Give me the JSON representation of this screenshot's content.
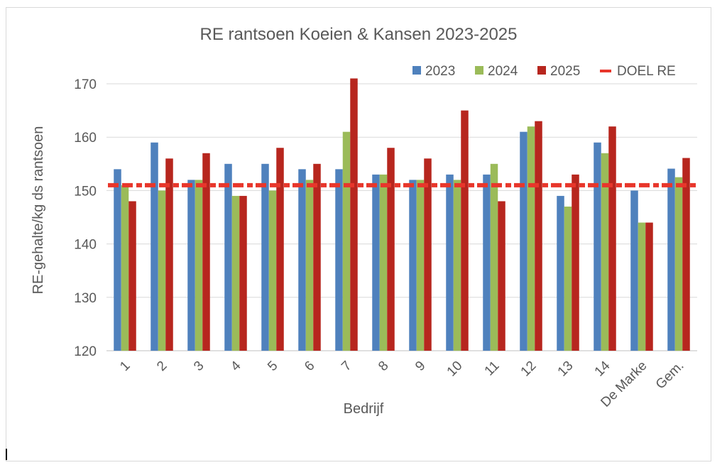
{
  "chart_data": {
    "type": "bar",
    "title": "RE rantsoen Koeien & Kansen 2023-2025",
    "xlabel": "Bedrijf",
    "ylabel": "RE-gehalte/kg ds rantsoen",
    "ylim": [
      120,
      170
    ],
    "yticks": [
      120,
      130,
      140,
      150,
      160,
      170
    ],
    "grid": true,
    "legend_position": "top-right",
    "categories": [
      "1",
      "2",
      "3",
      "4",
      "5",
      "6",
      "7",
      "8",
      "9",
      "10",
      "11",
      "12",
      "13",
      "14",
      "De Marke",
      "Gem."
    ],
    "series": [
      {
        "name": "2023",
        "color": "#4f81bd",
        "values": [
          154,
          159,
          152,
          155,
          155,
          154,
          154,
          153,
          152,
          153,
          153,
          161,
          149,
          159,
          150,
          154.1
        ]
      },
      {
        "name": "2024",
        "color": "#9bbb59",
        "values": [
          151,
          150,
          152,
          149,
          150,
          152,
          161,
          153,
          152,
          152,
          155,
          162,
          147,
          157,
          144,
          152.5
        ]
      },
      {
        "name": "2025",
        "color": "#b7261e",
        "values": [
          148,
          156,
          157,
          149,
          158,
          155,
          171,
          158,
          156,
          165,
          148,
          163,
          153,
          162,
          144,
          156.1
        ]
      }
    ],
    "target": {
      "name": "DOEL RE",
      "value": 151,
      "color": "#e8362b"
    }
  }
}
